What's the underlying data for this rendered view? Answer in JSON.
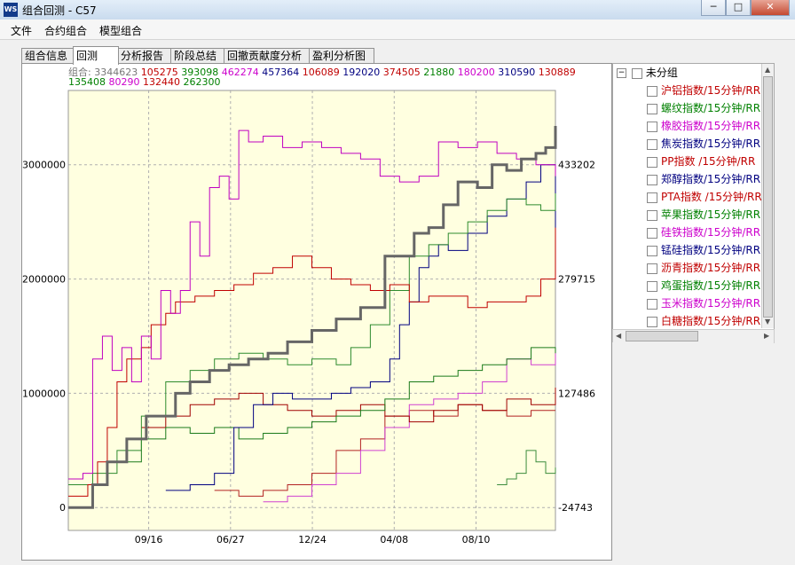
{
  "window": {
    "title": "组合回测 - C57",
    "icon": "app-logo-icon",
    "controls": {
      "minimize": "─",
      "maximize": "□",
      "close": "✕"
    }
  },
  "menu": [
    "文件",
    "合约组合",
    "模型组合"
  ],
  "tabs": [
    {
      "label": "组合信息"
    },
    {
      "label": "回测",
      "active": true
    },
    {
      "label": "分析报告"
    },
    {
      "label": "阶段总结"
    },
    {
      "label": "回撤贡献度分析"
    },
    {
      "label": "盈利分析图"
    }
  ],
  "summary": {
    "label": "组合:",
    "line1": [
      {
        "v": "3344623",
        "c": "#777777"
      },
      {
        "v": "105275",
        "c": "#c00000"
      },
      {
        "v": "393098",
        "c": "#008000"
      },
      {
        "v": "462274",
        "c": "#cc00cc"
      },
      {
        "v": "457364",
        "c": "#000080"
      },
      {
        "v": "106089",
        "c": "#c00000"
      },
      {
        "v": "192020",
        "c": "#000080"
      },
      {
        "v": "374505",
        "c": "#c00000"
      },
      {
        "v": "21880",
        "c": "#008000"
      },
      {
        "v": "180200",
        "c": "#cc00cc"
      },
      {
        "v": "310590",
        "c": "#000080"
      },
      {
        "v": "130889",
        "c": "#c00000"
      }
    ],
    "line2": [
      {
        "v": "135408",
        "c": "#008000"
      },
      {
        "v": "80290",
        "c": "#cc00cc"
      },
      {
        "v": "132440",
        "c": "#c00000"
      },
      {
        "v": "262300",
        "c": "#008000"
      }
    ]
  },
  "chart_data": {
    "type": "line",
    "left_axis": {
      "ticks": [
        0,
        1000000,
        2000000,
        3000000
      ],
      "range": [
        -200000,
        3650000
      ]
    },
    "right_axis": {
      "ticks": [
        -24743,
        127486,
        279715,
        433202
      ]
    },
    "x_ticks": [
      "09/16",
      "06/27",
      "12/24",
      "04/08",
      "08/10"
    ],
    "grid": true,
    "series": [
      {
        "color": "#666666",
        "width": 3,
        "points": [
          [
            0,
            0
          ],
          [
            0.03,
            0
          ],
          [
            0.05,
            200000
          ],
          [
            0.08,
            400000
          ],
          [
            0.12,
            600000
          ],
          [
            0.16,
            800000
          ],
          [
            0.19,
            800000
          ],
          [
            0.22,
            1000000
          ],
          [
            0.25,
            1100000
          ],
          [
            0.29,
            1200000
          ],
          [
            0.33,
            1250000
          ],
          [
            0.37,
            1300000
          ],
          [
            0.41,
            1350000
          ],
          [
            0.45,
            1450000
          ],
          [
            0.5,
            1550000
          ],
          [
            0.55,
            1650000
          ],
          [
            0.6,
            1750000
          ],
          [
            0.65,
            2200000
          ],
          [
            0.68,
            2200000
          ],
          [
            0.71,
            2400000
          ],
          [
            0.74,
            2450000
          ],
          [
            0.77,
            2650000
          ],
          [
            0.8,
            2850000
          ],
          [
            0.84,
            2800000
          ],
          [
            0.87,
            3000000
          ],
          [
            0.9,
            2950000
          ],
          [
            0.93,
            3050000
          ],
          [
            0.96,
            3100000
          ],
          [
            0.98,
            3150000
          ],
          [
            1,
            3340000
          ]
        ]
      },
      {
        "color": "#c000c0",
        "width": 1,
        "points": [
          [
            0,
            250000
          ],
          [
            0.03,
            300000
          ],
          [
            0.05,
            1300000
          ],
          [
            0.07,
            1500000
          ],
          [
            0.09,
            1200000
          ],
          [
            0.11,
            1400000
          ],
          [
            0.13,
            1100000
          ],
          [
            0.15,
            1500000
          ],
          [
            0.17,
            1300000
          ],
          [
            0.19,
            1900000
          ],
          [
            0.21,
            1700000
          ],
          [
            0.23,
            1900000
          ],
          [
            0.25,
            2500000
          ],
          [
            0.27,
            2200000
          ],
          [
            0.29,
            2800000
          ],
          [
            0.31,
            2900000
          ],
          [
            0.33,
            2700000
          ],
          [
            0.35,
            3300000
          ],
          [
            0.37,
            3200000
          ],
          [
            0.4,
            3250000
          ],
          [
            0.44,
            3150000
          ],
          [
            0.48,
            3200000
          ],
          [
            0.52,
            3150000
          ],
          [
            0.56,
            3100000
          ],
          [
            0.6,
            3050000
          ],
          [
            0.64,
            2900000
          ],
          [
            0.68,
            2850000
          ],
          [
            0.72,
            2900000
          ],
          [
            0.76,
            3200000
          ],
          [
            0.8,
            3150000
          ],
          [
            0.84,
            3200000
          ],
          [
            0.88,
            3100000
          ],
          [
            0.92,
            3050000
          ],
          [
            0.96,
            3000000
          ],
          [
            1,
            2900000
          ]
        ]
      },
      {
        "color": "#c00000",
        "width": 1,
        "points": [
          [
            0,
            100000
          ],
          [
            0.04,
            200000
          ],
          [
            0.06,
            400000
          ],
          [
            0.08,
            700000
          ],
          [
            0.1,
            1100000
          ],
          [
            0.12,
            1300000
          ],
          [
            0.15,
            1400000
          ],
          [
            0.17,
            1600000
          ],
          [
            0.2,
            1700000
          ],
          [
            0.22,
            1800000
          ],
          [
            0.26,
            1850000
          ],
          [
            0.3,
            1900000
          ],
          [
            0.34,
            1950000
          ],
          [
            0.38,
            2050000
          ],
          [
            0.42,
            2100000
          ],
          [
            0.46,
            2200000
          ],
          [
            0.5,
            2100000
          ],
          [
            0.54,
            2000000
          ],
          [
            0.58,
            1950000
          ],
          [
            0.62,
            1900000
          ],
          [
            0.66,
            1950000
          ],
          [
            0.7,
            1800000
          ],
          [
            0.74,
            1850000
          ],
          [
            0.78,
            1850000
          ],
          [
            0.82,
            1750000
          ],
          [
            0.86,
            1800000
          ],
          [
            0.9,
            1800000
          ],
          [
            0.94,
            1850000
          ],
          [
            0.97,
            2000000
          ],
          [
            1,
            2450000
          ]
        ]
      },
      {
        "color": "#2e8b2e",
        "width": 1,
        "points": [
          [
            0,
            200000
          ],
          [
            0.05,
            300000
          ],
          [
            0.1,
            500000
          ],
          [
            0.15,
            800000
          ],
          [
            0.2,
            1100000
          ],
          [
            0.25,
            1200000
          ],
          [
            0.3,
            1300000
          ],
          [
            0.35,
            1350000
          ],
          [
            0.4,
            1300000
          ],
          [
            0.45,
            1250000
          ],
          [
            0.5,
            1300000
          ],
          [
            0.55,
            1250000
          ],
          [
            0.58,
            1400000
          ],
          [
            0.62,
            1600000
          ],
          [
            0.66,
            1900000
          ],
          [
            0.7,
            2200000
          ],
          [
            0.74,
            2300000
          ],
          [
            0.78,
            2400000
          ],
          [
            0.82,
            2500000
          ],
          [
            0.86,
            2600000
          ],
          [
            0.9,
            2700000
          ],
          [
            0.94,
            2650000
          ],
          [
            0.97,
            2600000
          ],
          [
            1,
            2750000
          ]
        ]
      },
      {
        "color": "#000080",
        "width": 1,
        "points": [
          [
            0.2,
            150000
          ],
          [
            0.25,
            200000
          ],
          [
            0.3,
            300000
          ],
          [
            0.34,
            700000
          ],
          [
            0.38,
            900000
          ],
          [
            0.42,
            1000000
          ],
          [
            0.46,
            950000
          ],
          [
            0.5,
            950000
          ],
          [
            0.54,
            1000000
          ],
          [
            0.58,
            1050000
          ],
          [
            0.62,
            1100000
          ],
          [
            0.66,
            1300000
          ],
          [
            0.68,
            1600000
          ],
          [
            0.7,
            1800000
          ],
          [
            0.72,
            2100000
          ],
          [
            0.74,
            2200000
          ],
          [
            0.76,
            2300000
          ],
          [
            0.78,
            2250000
          ],
          [
            0.82,
            2400000
          ],
          [
            0.86,
            2550000
          ],
          [
            0.9,
            2700000
          ],
          [
            0.94,
            2850000
          ],
          [
            0.97,
            3000000
          ],
          [
            1,
            2200000
          ]
        ]
      },
      {
        "color": "#1a7a1a",
        "width": 1,
        "points": [
          [
            0.1,
            400000
          ],
          [
            0.15,
            600000
          ],
          [
            0.2,
            700000
          ],
          [
            0.25,
            650000
          ],
          [
            0.3,
            700000
          ],
          [
            0.35,
            600000
          ],
          [
            0.4,
            650000
          ],
          [
            0.45,
            700000
          ],
          [
            0.5,
            750000
          ],
          [
            0.55,
            800000
          ],
          [
            0.6,
            850000
          ],
          [
            0.65,
            950000
          ],
          [
            0.7,
            1100000
          ],
          [
            0.75,
            1150000
          ],
          [
            0.8,
            1200000
          ],
          [
            0.85,
            1250000
          ],
          [
            0.9,
            1300000
          ],
          [
            0.95,
            1400000
          ],
          [
            1,
            1350000
          ]
        ]
      },
      {
        "color": "#a00000",
        "width": 1,
        "points": [
          [
            0.15,
            700000
          ],
          [
            0.2,
            800000
          ],
          [
            0.25,
            900000
          ],
          [
            0.3,
            950000
          ],
          [
            0.35,
            1000000
          ],
          [
            0.4,
            900000
          ],
          [
            0.45,
            850000
          ],
          [
            0.5,
            800000
          ],
          [
            0.55,
            850000
          ],
          [
            0.6,
            900000
          ],
          [
            0.65,
            800000
          ],
          [
            0.7,
            750000
          ],
          [
            0.75,
            850000
          ],
          [
            0.8,
            900000
          ],
          [
            0.85,
            850000
          ],
          [
            0.9,
            950000
          ],
          [
            0.95,
            900000
          ],
          [
            1,
            1050000
          ]
        ]
      },
      {
        "color": "#d040d0",
        "width": 1,
        "points": [
          [
            0.4,
            50000
          ],
          [
            0.45,
            100000
          ],
          [
            0.5,
            200000
          ],
          [
            0.55,
            300000
          ],
          [
            0.6,
            500000
          ],
          [
            0.65,
            700000
          ],
          [
            0.7,
            900000
          ],
          [
            0.75,
            950000
          ],
          [
            0.8,
            1000000
          ],
          [
            0.85,
            1100000
          ],
          [
            0.9,
            1300000
          ],
          [
            0.95,
            1250000
          ],
          [
            1,
            1400000
          ]
        ]
      },
      {
        "color": "#b22222",
        "width": 1,
        "points": [
          [
            0.3,
            150000
          ],
          [
            0.35,
            100000
          ],
          [
            0.4,
            150000
          ],
          [
            0.45,
            200000
          ],
          [
            0.5,
            300000
          ],
          [
            0.55,
            500000
          ],
          [
            0.6,
            600000
          ],
          [
            0.65,
            800000
          ],
          [
            0.7,
            850000
          ],
          [
            0.75,
            800000
          ],
          [
            0.8,
            900000
          ],
          [
            0.85,
            850000
          ],
          [
            0.9,
            800000
          ],
          [
            0.95,
            850000
          ],
          [
            1,
            850000
          ]
        ]
      },
      {
        "color": "#3c8c3c",
        "width": 1,
        "points": [
          [
            0.88,
            200000
          ],
          [
            0.9,
            250000
          ],
          [
            0.92,
            300000
          ],
          [
            0.94,
            500000
          ],
          [
            0.96,
            400000
          ],
          [
            0.98,
            300000
          ],
          [
            1,
            350000
          ]
        ]
      }
    ]
  },
  "tree": {
    "root": "未分组",
    "items": [
      {
        "label": "沪铝指数/15分钟/RR",
        "color": "#c00000"
      },
      {
        "label": "螺纹指数/15分钟/RR",
        "color": "#008000"
      },
      {
        "label": "橡胶指数/15分钟/RR",
        "color": "#cc00cc"
      },
      {
        "label": "焦炭指数/15分钟/RR",
        "color": "#000080"
      },
      {
        "label": "PP指数 /15分钟/RR",
        "color": "#c00000"
      },
      {
        "label": "郑醇指数/15分钟/RR",
        "color": "#000080"
      },
      {
        "label": "PTA指数 /15分钟/RR",
        "color": "#c00000"
      },
      {
        "label": "苹果指数/15分钟/RR",
        "color": "#008000"
      },
      {
        "label": "硅铁指数/15分钟/RR",
        "color": "#cc00cc"
      },
      {
        "label": "锰硅指数/15分钟/RR",
        "color": "#000080"
      },
      {
        "label": "沥青指数/15分钟/RR",
        "color": "#c00000"
      },
      {
        "label": "鸡蛋指数/15分钟/RR",
        "color": "#008000"
      },
      {
        "label": "玉米指数/15分钟/RR",
        "color": "#cc00cc"
      },
      {
        "label": "白糖指数/15分钟/RR",
        "color": "#c00000"
      }
    ]
  }
}
